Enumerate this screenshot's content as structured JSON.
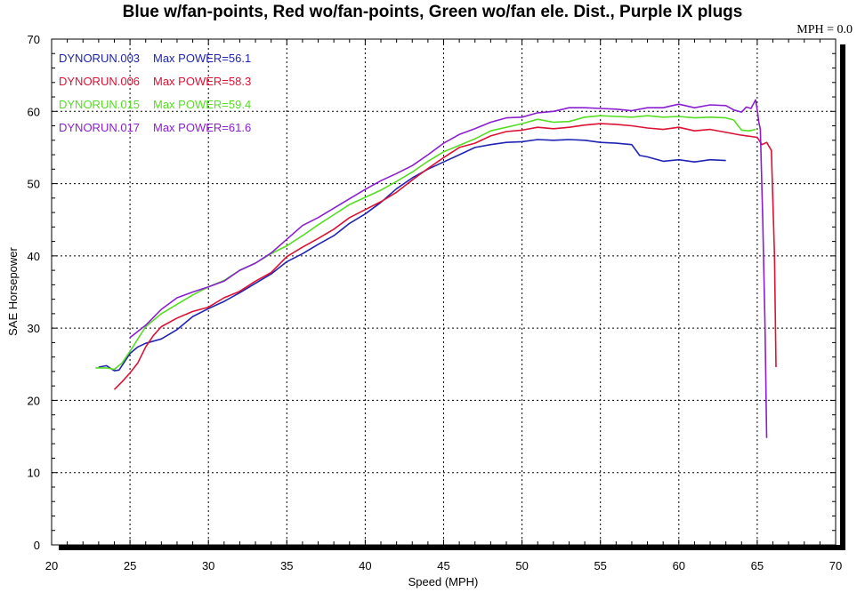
{
  "chart_data": {
    "type": "line",
    "title": "Blue w/fan-points, Red wo/fan-points, Green wo/fan ele. Dist., Purple IX plugs",
    "corner_readout": "MPH = 0.0",
    "xlabel": "Speed (MPH)",
    "ylabel": "SAE Horsepower",
    "xlim": [
      20,
      70
    ],
    "ylim": [
      0,
      70
    ],
    "xticks": [
      "20",
      "25",
      "30",
      "35",
      "40",
      "45",
      "50",
      "55",
      "60",
      "65",
      "70"
    ],
    "yticks": [
      "0",
      "10",
      "20",
      "30",
      "40",
      "50",
      "60",
      "70"
    ],
    "grid": true,
    "legend_position": "top-left",
    "series": [
      {
        "name": "DYNORUN.003",
        "label": "Max POWER=56.1",
        "color": "#1f24b4",
        "x": [
          23.0,
          23.5,
          24.0,
          24.3,
          24.7,
          25.0,
          25.5,
          26.0,
          27.0,
          28.0,
          29.0,
          30.0,
          31.0,
          32.0,
          33.0,
          34.0,
          35.0,
          36.0,
          37.0,
          38.0,
          39.0,
          40.0,
          41.0,
          42.0,
          43.0,
          44.0,
          45.0,
          46.0,
          47.0,
          48.0,
          49.0,
          50.0,
          51.0,
          52.0,
          53.0,
          54.0,
          55.0,
          56.0,
          57.0,
          57.5,
          58.0,
          59.0,
          60.0,
          61.0,
          62.0,
          63.0
        ],
        "y": [
          24.6,
          24.8,
          24.1,
          24.2,
          25.5,
          26.5,
          27.4,
          27.9,
          28.5,
          29.8,
          31.6,
          32.7,
          33.7,
          34.9,
          36.2,
          37.5,
          39.2,
          40.3,
          41.6,
          42.8,
          44.5,
          45.8,
          47.4,
          49.3,
          50.8,
          52.0,
          53.0,
          54.0,
          55.0,
          55.4,
          55.7,
          55.8,
          56.1,
          56.0,
          56.1,
          56.0,
          55.7,
          55.6,
          55.4,
          53.9,
          53.7,
          53.1,
          53.3,
          53.0,
          53.3,
          53.2
        ]
      },
      {
        "name": "DYNORUN.006",
        "label": "Max POWER=58.3",
        "color": "#dd1133",
        "x": [
          24.0,
          24.5,
          25.0,
          25.5,
          26.0,
          26.5,
          27.0,
          28.0,
          29.0,
          30.0,
          31.0,
          32.0,
          33.0,
          34.0,
          35.0,
          36.0,
          37.0,
          38.0,
          39.0,
          40.0,
          41.0,
          42.0,
          43.0,
          44.0,
          45.0,
          46.0,
          47.0,
          48.0,
          49.0,
          50.0,
          51.0,
          52.0,
          53.0,
          54.0,
          55.0,
          56.0,
          57.0,
          58.0,
          59.0,
          60.0,
          61.0,
          62.0,
          63.0,
          64.0,
          65.0,
          65.3,
          65.6,
          65.9,
          66.1,
          66.2
        ],
        "y": [
          21.5,
          22.6,
          23.8,
          25.2,
          27.4,
          29.0,
          30.2,
          31.4,
          32.3,
          32.9,
          34.2,
          35.1,
          36.5,
          37.7,
          39.9,
          41.2,
          42.4,
          43.7,
          45.3,
          46.4,
          47.5,
          48.8,
          50.5,
          52.1,
          53.6,
          55.0,
          55.6,
          56.6,
          57.2,
          57.4,
          57.8,
          57.6,
          57.8,
          58.1,
          58.3,
          58.2,
          58.0,
          57.7,
          57.5,
          57.8,
          57.3,
          57.5,
          57.1,
          56.7,
          56.4,
          55.4,
          55.7,
          54.6,
          40.0,
          24.6
        ]
      },
      {
        "name": "DYNORUN.015",
        "label": "Max POWER=59.4",
        "color": "#55dd22",
        "x": [
          22.8,
          23.5,
          24.0,
          24.5,
          25.0,
          26.0,
          27.0,
          28.0,
          29.0,
          30.0,
          31.0,
          32.0,
          33.0,
          34.0,
          35.0,
          36.0,
          37.0,
          38.0,
          39.0,
          40.0,
          41.0,
          42.0,
          43.0,
          44.0,
          45.0,
          46.0,
          47.0,
          48.0,
          49.0,
          50.0,
          51.0,
          52.0,
          53.0,
          54.0,
          55.0,
          56.0,
          57.0,
          58.0,
          59.0,
          60.0,
          61.0,
          62.0,
          63.0,
          63.5,
          64.0,
          64.5,
          64.9
        ],
        "y": [
          24.5,
          24.5,
          24.3,
          25.2,
          26.8,
          30.2,
          32.0,
          33.3,
          34.6,
          35.7,
          36.6,
          38.0,
          39.0,
          40.3,
          41.4,
          42.8,
          44.3,
          45.7,
          47.1,
          48.1,
          49.1,
          50.3,
          51.6,
          53.1,
          54.4,
          55.3,
          56.2,
          57.3,
          57.8,
          58.3,
          58.9,
          58.5,
          58.6,
          59.2,
          59.4,
          59.3,
          59.2,
          59.4,
          59.2,
          59.3,
          59.1,
          59.2,
          59.1,
          58.8,
          57.4,
          57.3,
          57.5
        ]
      },
      {
        "name": "DYNORUN.017",
        "label": "Max POWER=61.6",
        "color": "#8a1fd1",
        "x": [
          25.0,
          26.0,
          27.0,
          28.0,
          29.0,
          30.0,
          31.0,
          32.0,
          33.0,
          34.0,
          35.0,
          36.0,
          37.0,
          38.0,
          39.0,
          40.0,
          41.0,
          42.0,
          43.0,
          44.0,
          45.0,
          46.0,
          47.0,
          48.0,
          49.0,
          50.0,
          51.0,
          52.0,
          53.0,
          54.0,
          55.0,
          56.0,
          57.0,
          58.0,
          59.0,
          60.0,
          61.0,
          62.0,
          63.0,
          63.5,
          64.0,
          64.3,
          64.6,
          64.9,
          65.0,
          65.1,
          65.2,
          65.35,
          65.5,
          65.6
        ],
        "y": [
          28.7,
          30.4,
          32.6,
          34.2,
          35.0,
          35.7,
          36.5,
          38.0,
          39.0,
          40.4,
          42.3,
          44.2,
          45.3,
          46.6,
          47.9,
          49.2,
          50.4,
          51.4,
          52.5,
          54.0,
          55.6,
          56.8,
          57.6,
          58.5,
          59.1,
          59.2,
          59.8,
          60.0,
          60.5,
          60.5,
          60.4,
          60.3,
          60.1,
          60.5,
          60.5,
          61.0,
          60.5,
          60.9,
          60.8,
          60.2,
          59.9,
          60.6,
          60.4,
          61.6,
          60.2,
          58.5,
          57.5,
          45.0,
          30.0,
          14.8
        ]
      }
    ]
  }
}
